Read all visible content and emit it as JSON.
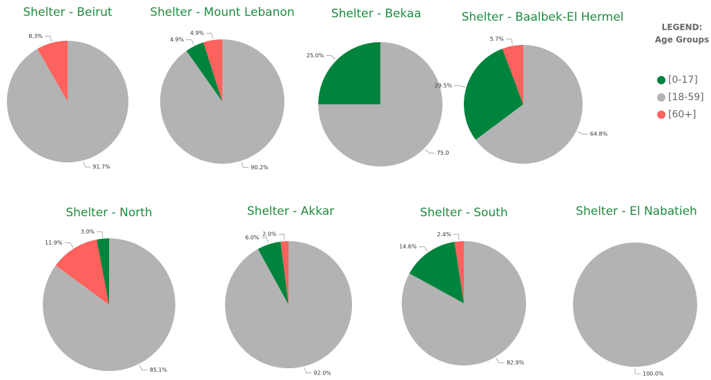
{
  "chart_data": [
    {
      "type": "pie",
      "title": "Shelter  - Beirut",
      "categories": [
        "[18-59]",
        "[60+]"
      ],
      "values": [
        91.7,
        8.3
      ],
      "value_labels": [
        "91.7%",
        "8.3%"
      ],
      "colors": [
        "#b3b3b3",
        "#fd625e"
      ]
    },
    {
      "type": "pie",
      "title": "Shelter - Mount Lebanon",
      "categories": [
        "[18-59]",
        "[0-17]",
        "[60+]"
      ],
      "values": [
        90.2,
        4.9,
        4.9
      ],
      "value_labels": [
        "90.2%",
        "4.9%",
        "4.9%"
      ],
      "colors": [
        "#b3b3b3",
        "#00843d",
        "#fd625e"
      ]
    },
    {
      "type": "pie",
      "title": "Shelter - Bekaa",
      "categories": [
        "[18-59]",
        "[0-17]"
      ],
      "values": [
        75.0,
        25.0
      ],
      "value_labels": [
        "75.0",
        "25.0%"
      ],
      "colors": [
        "#b3b3b3",
        "#00843d"
      ]
    },
    {
      "type": "pie",
      "title": "Shelter - Baalbek-El Hermel",
      "categories": [
        "[18-59]",
        "[0-17]",
        "[60+]"
      ],
      "values": [
        64.8,
        29.5,
        5.7
      ],
      "value_labels": [
        "64.8%",
        "29.5%",
        "5.7%"
      ],
      "colors": [
        "#b3b3b3",
        "#00843d",
        "#fd625e"
      ]
    },
    {
      "type": "pie",
      "title": "Shelter - North",
      "categories": [
        "[18-59]",
        "[60+]",
        "[0-17]"
      ],
      "values": [
        85.1,
        11.9,
        3.0
      ],
      "value_labels": [
        "85.1%",
        "11.9%",
        "3.0%"
      ],
      "colors": [
        "#b3b3b3",
        "#fd625e",
        "#00843d"
      ]
    },
    {
      "type": "pie",
      "title": "Shelter - Akkar",
      "categories": [
        "[18-59]",
        "[0-17]",
        "[60+]"
      ],
      "values": [
        92.0,
        6.0,
        2.0
      ],
      "value_labels": [
        "92.0%",
        "6.0%",
        "2.0%"
      ],
      "colors": [
        "#b3b3b3",
        "#00843d",
        "#fd625e"
      ]
    },
    {
      "type": "pie",
      "title": "Shelter - South",
      "categories": [
        "[18-59]",
        "[0-17]",
        "[60+]"
      ],
      "values": [
        82.9,
        14.6,
        2.4
      ],
      "value_labels": [
        "82.9%",
        "14.6%",
        "2.4%"
      ],
      "colors": [
        "#b3b3b3",
        "#00843d",
        "#fd625e"
      ]
    },
    {
      "type": "pie",
      "title": "Shelter - El Nabatieh",
      "categories": [
        "[18-59]"
      ],
      "values": [
        100
      ],
      "value_labels": [
        "100.0%"
      ],
      "colors": [
        "#b3b3b3"
      ]
    }
  ],
  "legend": {
    "title": "LEGEND:",
    "subtitle": "Age Groups",
    "items": [
      {
        "name": "[0-17]",
        "color": "#00843d"
      },
      {
        "name": "[18-59]",
        "color": "#b3b3b3"
      },
      {
        "name": "[60+]",
        "color": "#fd625e"
      }
    ]
  }
}
